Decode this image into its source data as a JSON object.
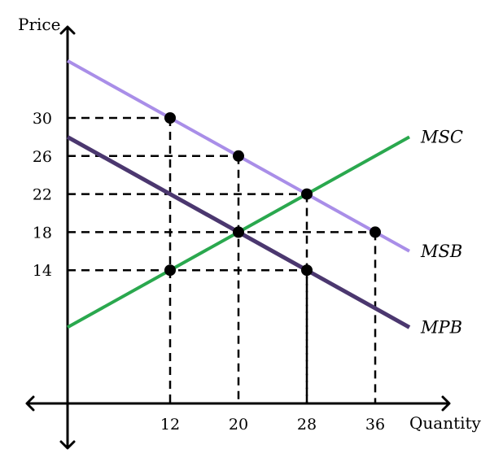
{
  "chart_data": {
    "type": "line",
    "xlabel": "Quantity",
    "ylabel": "Price",
    "xlim": [
      0,
      48
    ],
    "ylim": [
      -8,
      48
    ],
    "x_ticks": [
      12,
      20,
      28,
      36
    ],
    "y_ticks": [
      14,
      18,
      22,
      26,
      30
    ],
    "series": [
      {
        "name": "MSC",
        "color": "#2aa84e",
        "width": 4,
        "x": [
          0,
          40
        ],
        "y": [
          8,
          28
        ]
      },
      {
        "name": "MSB",
        "color": "#a98ee8",
        "width": 4,
        "x": [
          0,
          40
        ],
        "y": [
          36,
          16
        ]
      },
      {
        "name": "MPB",
        "color": "#4b376f",
        "width": 5,
        "x": [
          0,
          40
        ],
        "y": [
          28,
          8
        ]
      }
    ],
    "points": [
      {
        "x": 12,
        "y": 30
      },
      {
        "x": 20,
        "y": 26
      },
      {
        "x": 28,
        "y": 22
      },
      {
        "x": 36,
        "y": 18
      },
      {
        "x": 20,
        "y": 18
      },
      {
        "x": 12,
        "y": 14
      },
      {
        "x": 28,
        "y": 14
      }
    ],
    "guide_lines": [
      {
        "x": 12,
        "y": 30
      },
      {
        "x": 20,
        "y": 26
      },
      {
        "x": 28,
        "y": 22
      },
      {
        "x": 36,
        "y": 18
      },
      {
        "x": 28,
        "y": 14
      }
    ],
    "grid": false,
    "legend": "none"
  }
}
